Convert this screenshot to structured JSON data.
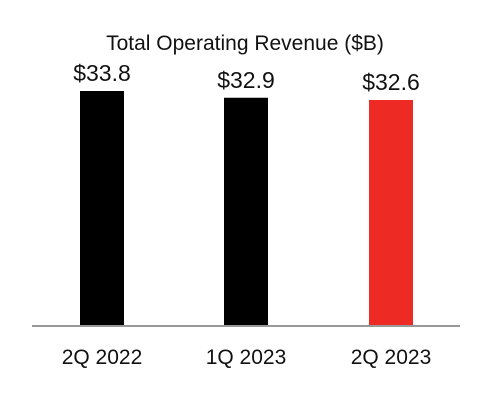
{
  "chart_data": {
    "type": "bar",
    "title": "Total Operating Revenue ($B)",
    "categories": [
      "2Q 2022",
      "1Q 2023",
      "2Q 2023"
    ],
    "values": [
      33.8,
      32.9,
      32.6
    ],
    "data_labels": [
      "$33.8",
      "$32.9",
      "$32.6"
    ],
    "bar_colors": [
      "#000000",
      "#000000",
      "#ee2a24"
    ],
    "baseline_color": "#999999",
    "xlabel": "",
    "ylabel": "",
    "grid": false,
    "legend": "none"
  }
}
